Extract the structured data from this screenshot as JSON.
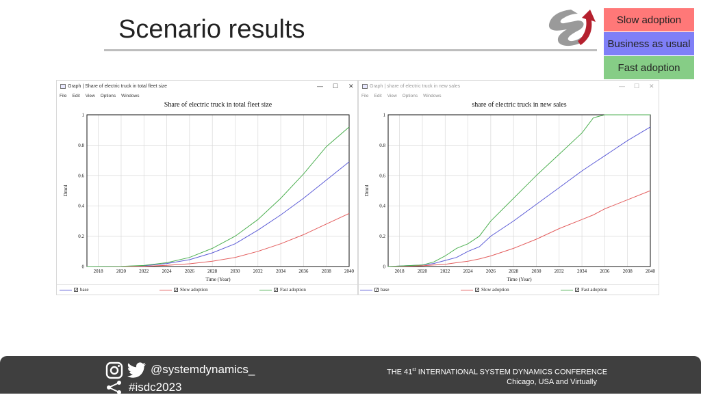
{
  "slide": {
    "title": "Scenario results",
    "legend": [
      {
        "label": "Slow adoption",
        "color": "#ff7878"
      },
      {
        "label": "Business as usual",
        "color": "#7f7ff7"
      },
      {
        "label": "Fast adoption",
        "color": "#86cd86"
      }
    ]
  },
  "left_window": {
    "title": "Graph | Share of electric truck in total fleet size",
    "menu": [
      "File",
      "Edit",
      "View",
      "Options",
      "Windows"
    ],
    "controls": {
      "minimize": "—",
      "maximize": "☐",
      "close": "✕"
    },
    "legend": [
      "base",
      "Slow adoption",
      "Fast adoption"
    ]
  },
  "right_window": {
    "title": "Graph | share of electric truck in new sales",
    "menu": [
      "File",
      "Edit",
      "View",
      "Options",
      "Windows"
    ],
    "controls": {
      "minimize": "—",
      "maximize": "☐",
      "close": "✕"
    },
    "legend": [
      "base",
      "Slow adoption",
      "Fast adoption"
    ]
  },
  "chart_data": [
    {
      "type": "line",
      "title": "Share of electric truck in total fleet size",
      "xlabel": "Time (Year)",
      "ylabel": "Dmnl",
      "xlim": [
        2017,
        2040
      ],
      "ylim": [
        0,
        1
      ],
      "x_ticks": [
        2018,
        2020,
        2022,
        2024,
        2026,
        2028,
        2030,
        2032,
        2034,
        2036,
        2038,
        2040
      ],
      "y_ticks": [
        0,
        0.2,
        0.4,
        0.6,
        0.8,
        1
      ],
      "grid": true,
      "legend_position": "bottom",
      "x": [
        2017,
        2020,
        2022,
        2024,
        2026,
        2028,
        2030,
        2032,
        2034,
        2036,
        2038,
        2040
      ],
      "series": [
        {
          "name": "base",
          "color": "#5b5bd6",
          "values": [
            0,
            0.001,
            0.005,
            0.02,
            0.045,
            0.09,
            0.15,
            0.24,
            0.34,
            0.45,
            0.57,
            0.69
          ]
        },
        {
          "name": "Slow adoption",
          "color": "#e35d5d",
          "values": [
            0,
            0.0,
            0.002,
            0.008,
            0.018,
            0.035,
            0.06,
            0.1,
            0.15,
            0.21,
            0.28,
            0.35
          ]
        },
        {
          "name": "Fast adoption",
          "color": "#4caf50",
          "values": [
            0,
            0.001,
            0.007,
            0.025,
            0.06,
            0.12,
            0.2,
            0.31,
            0.45,
            0.61,
            0.79,
            0.92
          ]
        }
      ]
    },
    {
      "type": "line",
      "title": "share of electric truck in new sales",
      "xlabel": "Time (Year)",
      "ylabel": "Dmnl",
      "xlim": [
        2017,
        2040
      ],
      "ylim": [
        0,
        1
      ],
      "x_ticks": [
        2018,
        2020,
        2022,
        2024,
        2026,
        2028,
        2030,
        2032,
        2034,
        2036,
        2038,
        2040
      ],
      "y_ticks": [
        0,
        0.2,
        0.4,
        0.6,
        0.8,
        1
      ],
      "grid": true,
      "legend_position": "bottom",
      "x": [
        2017,
        2020,
        2021,
        2022,
        2023,
        2024,
        2025,
        2026,
        2028,
        2030,
        2032,
        2034,
        2035,
        2036,
        2038,
        2040
      ],
      "series": [
        {
          "name": "base",
          "color": "#5b5bd6",
          "values": [
            0,
            0.01,
            0.02,
            0.04,
            0.06,
            0.1,
            0.13,
            0.2,
            0.3,
            0.41,
            0.52,
            0.63,
            0.68,
            0.73,
            0.83,
            0.92
          ]
        },
        {
          "name": "Slow adoption",
          "color": "#e35d5d",
          "values": [
            0,
            0.005,
            0.01,
            0.015,
            0.025,
            0.035,
            0.05,
            0.07,
            0.12,
            0.18,
            0.25,
            0.31,
            0.34,
            0.38,
            0.44,
            0.5
          ]
        },
        {
          "name": "Fast adoption",
          "color": "#4caf50",
          "values": [
            0,
            0.01,
            0.03,
            0.07,
            0.12,
            0.15,
            0.2,
            0.3,
            0.45,
            0.6,
            0.74,
            0.88,
            0.98,
            1.0,
            1.0,
            1.0
          ]
        }
      ]
    }
  ],
  "footer": {
    "handle": "@systemdynamics_",
    "hashtag": "#isdc2023",
    "conference_prefix": "THE 41",
    "conference_sup": "st",
    "conference_suffix": " INTERNATIONAL SYSTEM DYNAMICS CONFERENCE",
    "location": "Chicago, USA and Virtually"
  }
}
